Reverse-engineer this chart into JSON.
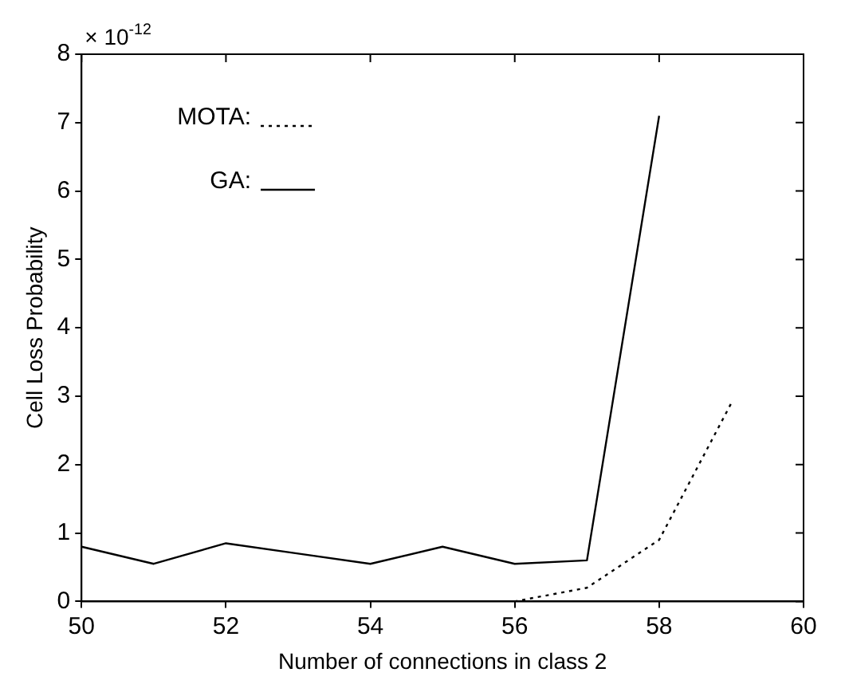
{
  "chart_data": {
    "type": "line",
    "xlabel": "Number of connections in class 2",
    "ylabel": "Cell Loss Probability",
    "annotations": [
      "× 10$^{-12}$"
    ],
    "series": [
      {
        "name": "MOTA:",
        "color": "#000000",
        "line_style": "dotted",
        "x": [
          55,
          56,
          57,
          58,
          59
        ],
        "values": [
          0,
          0,
          0.2,
          0.9,
          2.9
        ]
      },
      {
        "name": "GA:",
        "color": "#000000",
        "line_style": "solid",
        "x": [
          50,
          51,
          52,
          53,
          54,
          55,
          56,
          57,
          58
        ],
        "values": [
          0.8,
          0.55,
          0.85,
          0.7,
          0.55,
          0.8,
          0.55,
          0.6,
          7.1
        ]
      }
    ],
    "xlim": [
      50,
      60
    ],
    "xticks": [
      50,
      52,
      54,
      56,
      58,
      60
    ],
    "ylim": [
      0,
      8
    ],
    "yticks": [
      0,
      1,
      2,
      3,
      4,
      5,
      6,
      7,
      8
    ],
    "grid": false,
    "legend": "top left",
    "marker": "none"
  }
}
